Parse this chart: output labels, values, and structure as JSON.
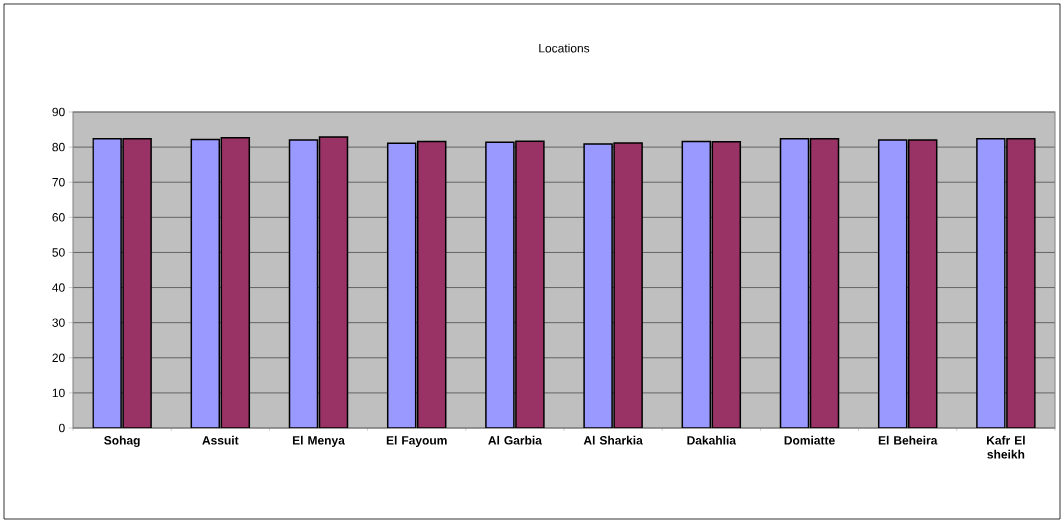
{
  "chart_data": {
    "type": "bar",
    "title": "Locations",
    "categories": [
      "Sohag",
      "Assuit",
      "El Menya",
      "El Fayoum",
      "Al Garbia",
      "Al Sharkia",
      "Dakahlia",
      "Domiatte",
      "El Beheira",
      "Kafr El sheikh"
    ],
    "series": [
      {
        "color": "#9999ff",
        "values": [
          82.4,
          82.2,
          82.0,
          81.1,
          81.4,
          80.9,
          81.6,
          82.4,
          82.0,
          82.4
        ]
      },
      {
        "color": "#993366",
        "values": [
          82.4,
          82.7,
          82.9,
          81.6,
          81.7,
          81.2,
          81.5,
          82.4,
          82.0,
          82.4
        ]
      }
    ],
    "ylim": [
      0,
      90
    ],
    "yticks": [
      0,
      10,
      20,
      30,
      40,
      50,
      60,
      70,
      80,
      90
    ],
    "grid": "y"
  }
}
